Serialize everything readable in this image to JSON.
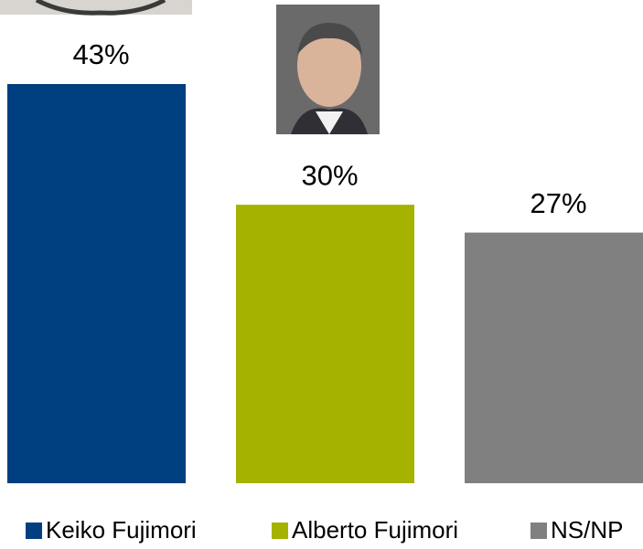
{
  "chart_data": {
    "type": "bar",
    "categories": [
      "Keiko Fujimori",
      "Alberto Fujimori",
      "NS/NP"
    ],
    "values": [
      43,
      30,
      27
    ],
    "value_labels": [
      "43%",
      "30%",
      "27%"
    ],
    "colors": [
      "#003f7f",
      "#a5b200",
      "#808080"
    ]
  }
}
